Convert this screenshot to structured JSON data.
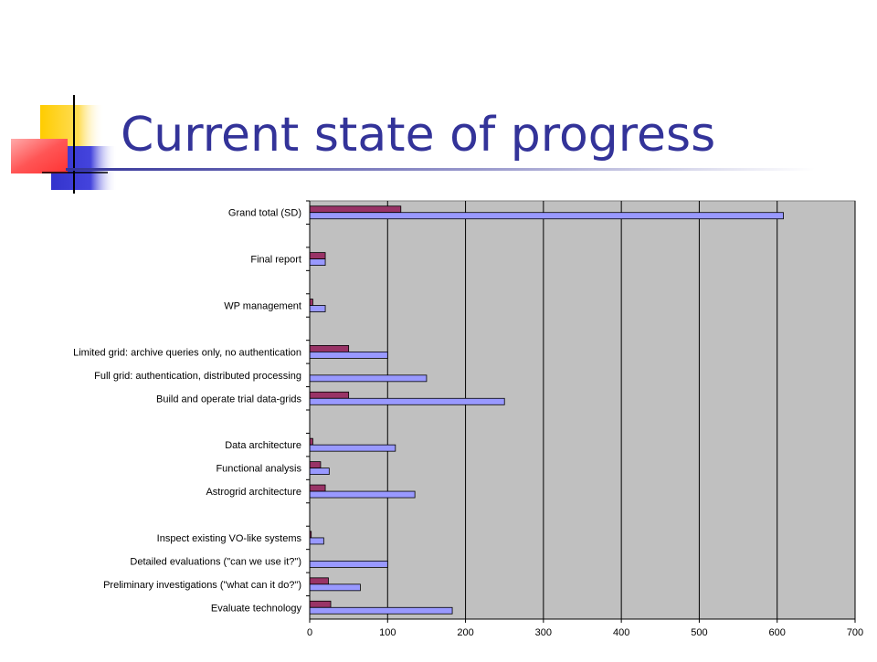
{
  "slide": {
    "title": "Current state of progress"
  },
  "colors": {
    "title": "#333399",
    "plot_bg": "#c0c0c0",
    "actual": "#993366",
    "planned": "#9999ff"
  },
  "chart_data": {
    "type": "bar",
    "orientation": "horizontal",
    "title": "",
    "xlabel": "",
    "ylabel": "",
    "xlim": [
      0,
      700
    ],
    "x_ticks": [
      0,
      100,
      200,
      300,
      400,
      500,
      600,
      700
    ],
    "grid": "vertical",
    "legend": "none",
    "categories": [
      "Grand total (SD)",
      "",
      "Final report",
      "",
      "WP management",
      "",
      "Limited grid: archive queries only, no authentication",
      "Full grid: authentication, distributed processing",
      "Build and operate trial data-grids",
      "",
      "Data architecture",
      "Functional analysis",
      "Astrogrid architecture",
      "",
      "Inspect existing VO-like systems",
      "Detailed evaluations (\"can we use it?\")",
      "Preliminary investigations (\"what can it do?\")",
      "Evaluate technology"
    ],
    "series": [
      {
        "color": "#993366",
        "values": [
          117,
          null,
          20,
          null,
          4,
          null,
          50,
          0,
          50,
          null,
          4,
          14,
          20,
          null,
          2,
          0,
          24,
          27
        ]
      },
      {
        "color": "#9999ff",
        "values": [
          608,
          null,
          20,
          null,
          20,
          null,
          100,
          150,
          250,
          null,
          110,
          25,
          135,
          null,
          18,
          100,
          65,
          183
        ]
      }
    ]
  }
}
